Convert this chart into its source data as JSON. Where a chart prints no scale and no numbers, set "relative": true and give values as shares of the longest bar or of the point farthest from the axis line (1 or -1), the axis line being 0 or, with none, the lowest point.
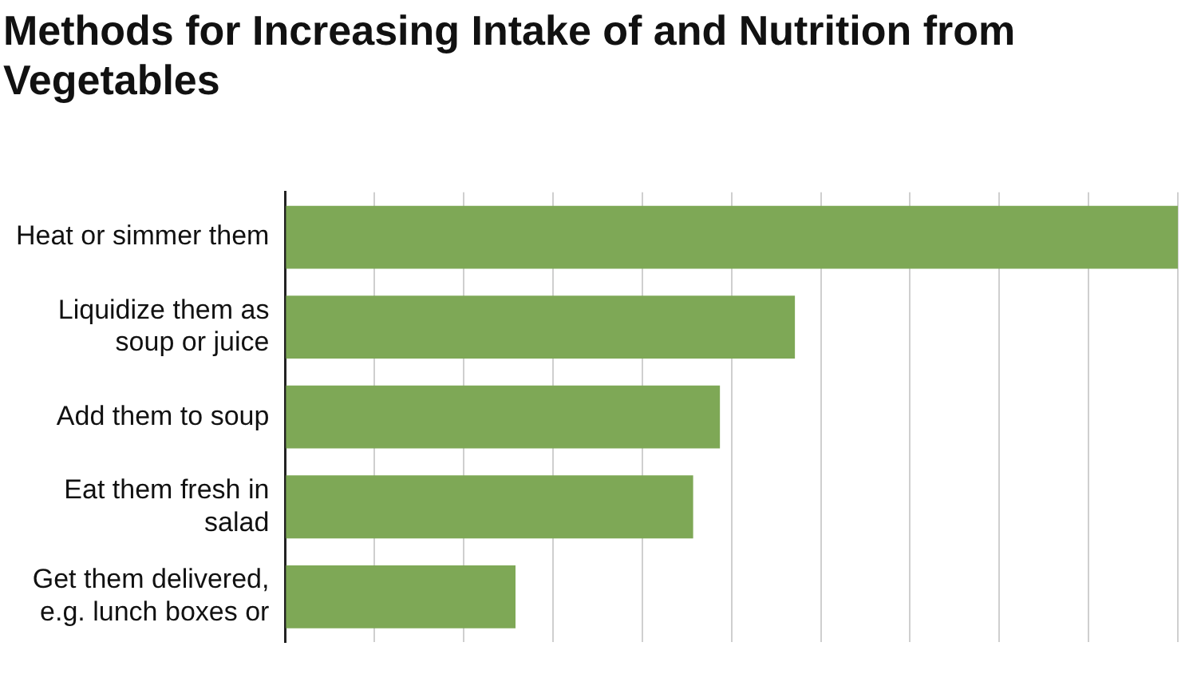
{
  "chart_data": {
    "type": "bar",
    "title": "Methods for Increasing Intake of and Nutrition from Vegetables",
    "orientation": "horizontal",
    "relative": true,
    "grid": "x",
    "categories": [
      "Heat or simmer them",
      "Liquidize them as soup or juice",
      "Add them to soup",
      "Eat them fresh in salad",
      "Get them delivered, e.g. lunch boxes or"
    ],
    "values": [
      1,
      0.571,
      0.487,
      0.457,
      0.258
    ],
    "color": "#7ea856"
  }
}
